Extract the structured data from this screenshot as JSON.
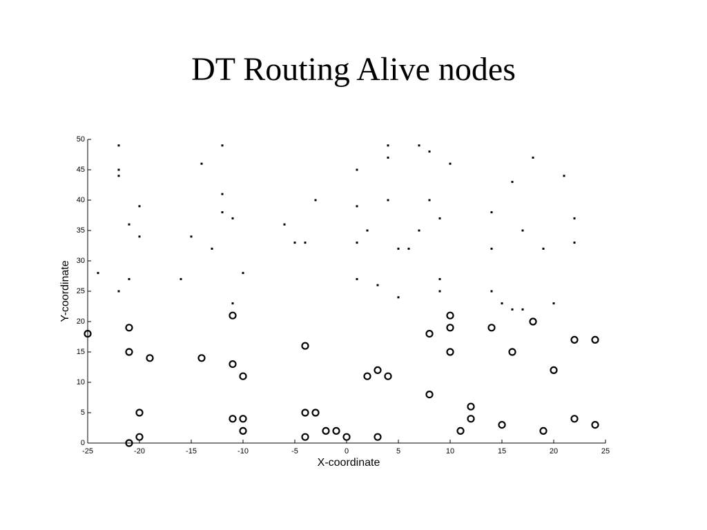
{
  "chart_data": {
    "type": "scatter",
    "title": "DT Routing Alive nodes",
    "x_label": "X-coordinate",
    "y_label": "Y-coordinate",
    "xlim": [
      -25,
      25
    ],
    "ylim": [
      0,
      50
    ],
    "xticks": [
      -25,
      -20,
      -15,
      -10,
      -5,
      0,
      5,
      10,
      15,
      20,
      25
    ],
    "yticks": [
      0,
      5,
      10,
      15,
      20,
      25,
      30,
      35,
      40,
      45,
      50
    ],
    "series": [
      {
        "marker": "circle",
        "color": "#000000",
        "x": [
          -25,
          -21,
          -21,
          -19,
          -20,
          -20,
          -21,
          -14,
          -11,
          -11,
          -10,
          -11,
          -10,
          -10,
          -4,
          -4,
          -3,
          -4,
          -2,
          -1,
          0,
          2,
          3,
          4,
          3,
          8,
          8,
          10,
          10,
          10,
          12,
          12,
          11,
          14,
          16,
          15,
          18,
          20,
          19,
          22,
          24,
          22,
          24
        ],
        "y": [
          18,
          19,
          15,
          14,
          5,
          1,
          0,
          14,
          21,
          13,
          11,
          4,
          4,
          2,
          16,
          5,
          5,
          1,
          2,
          2,
          1,
          11,
          12,
          11,
          1,
          18,
          8,
          21,
          19,
          15,
          6,
          4,
          2,
          19,
          15,
          3,
          20,
          12,
          2,
          17,
          17,
          4,
          3
        ]
      },
      {
        "marker": "dot",
        "color": "#000000",
        "x": [
          -22,
          -22,
          -22,
          -24,
          -21,
          -22,
          -20,
          -21,
          -20,
          -16,
          -15,
          -14,
          -13,
          -12,
          -12,
          -12,
          -11,
          -10,
          -11,
          -6,
          -5,
          -4,
          -3,
          1,
          1,
          1,
          1,
          2,
          3,
          4,
          4,
          4,
          5,
          6,
          5,
          7,
          8,
          7,
          8,
          9,
          9,
          9,
          10,
          14,
          14,
          14,
          15,
          16,
          17,
          16,
          17,
          18,
          19,
          20,
          21,
          22,
          22
        ],
        "y": [
          49,
          45,
          44,
          28,
          27,
          25,
          39,
          36,
          34,
          27,
          34,
          46,
          32,
          49,
          41,
          38,
          37,
          28,
          23,
          36,
          33,
          33,
          40,
          45,
          39,
          33,
          27,
          35,
          26,
          49,
          47,
          40,
          32,
          32,
          24,
          49,
          48,
          35,
          40,
          37,
          27,
          25,
          46,
          38,
          32,
          25,
          23,
          22,
          22,
          43,
          35,
          47,
          32,
          23,
          44,
          37,
          33
        ]
      }
    ]
  }
}
